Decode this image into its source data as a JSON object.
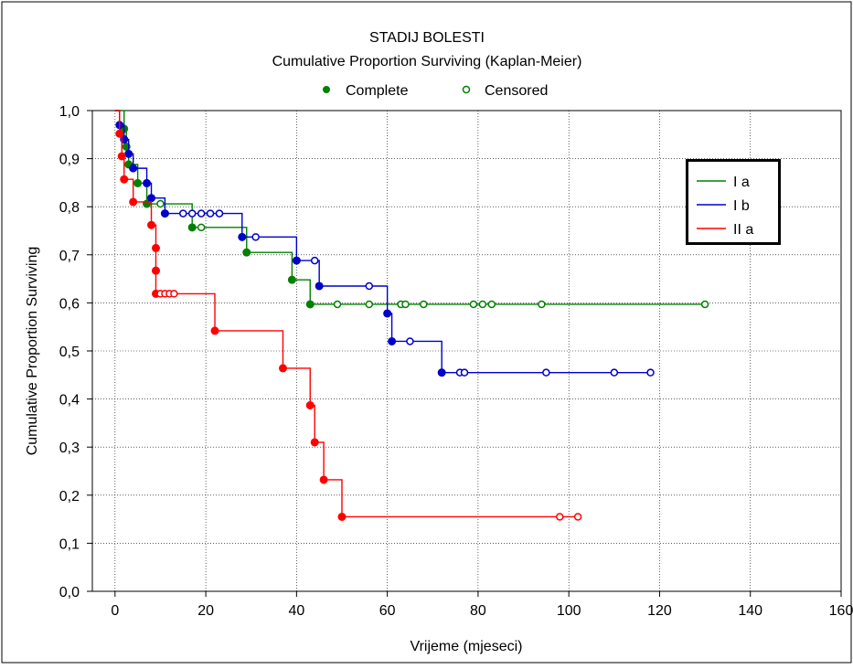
{
  "chart_data": {
    "type": "line",
    "title": "STADIJ BOLESTI",
    "subtitle": "Cumulative Proportion Surviving (Kaplan-Meier)",
    "xlabel": "Vrijeme (mjeseci)",
    "ylabel": "Cumulative Proportion Surviving",
    "xlim": [
      -5,
      160
    ],
    "ylim": [
      0,
      1
    ],
    "x_ticks": [
      "0",
      "20",
      "40",
      "60",
      "80",
      "100",
      "120",
      "140",
      "160"
    ],
    "y_ticks": [
      "0,0",
      "0,1",
      "0,2",
      "0,3",
      "0,4",
      "0,5",
      "0,6",
      "0,7",
      "0,8",
      "0,9",
      "1,0"
    ],
    "grid": true,
    "marker_legend": {
      "complete": "Complete",
      "censored": "Censored"
    },
    "legend_position": "top-right",
    "series": [
      {
        "name": "I a",
        "color": "#008000",
        "steps": [
          [
            0,
            1.0
          ],
          [
            2,
            0.962
          ],
          [
            2.5,
            0.925
          ],
          [
            3,
            0.888
          ],
          [
            5,
            0.849
          ],
          [
            7,
            0.806
          ],
          [
            17,
            0.757
          ],
          [
            29,
            0.705
          ],
          [
            39,
            0.648
          ],
          [
            43,
            0.597
          ],
          [
            130,
            0.597
          ]
        ],
        "complete": [
          [
            2,
            0.962
          ],
          [
            2.5,
            0.925
          ],
          [
            3,
            0.888
          ],
          [
            5,
            0.849
          ],
          [
            7,
            0.806
          ],
          [
            17,
            0.757
          ],
          [
            29,
            0.705
          ],
          [
            39,
            0.648
          ],
          [
            43,
            0.597
          ]
        ],
        "censored": [
          [
            10,
            0.806
          ],
          [
            19,
            0.757
          ],
          [
            49,
            0.597
          ],
          [
            56,
            0.597
          ],
          [
            63,
            0.597
          ],
          [
            64,
            0.597
          ],
          [
            68,
            0.597
          ],
          [
            79,
            0.597
          ],
          [
            81,
            0.597
          ],
          [
            83,
            0.597
          ],
          [
            94,
            0.597
          ],
          [
            130,
            0.597
          ]
        ]
      },
      {
        "name": "I b",
        "color": "#0000cc",
        "steps": [
          [
            0,
            1.0
          ],
          [
            1,
            0.97
          ],
          [
            2,
            0.94
          ],
          [
            3,
            0.91
          ],
          [
            4,
            0.88
          ],
          [
            7,
            0.849
          ],
          [
            8,
            0.818
          ],
          [
            11,
            0.786
          ],
          [
            28,
            0.737
          ],
          [
            40,
            0.688
          ],
          [
            45,
            0.635
          ],
          [
            60,
            0.578
          ],
          [
            61,
            0.52
          ],
          [
            72,
            0.455
          ],
          [
            118,
            0.455
          ]
        ],
        "complete": [
          [
            1,
            0.97
          ],
          [
            2,
            0.94
          ],
          [
            3,
            0.91
          ],
          [
            4,
            0.88
          ],
          [
            7,
            0.849
          ],
          [
            8,
            0.818
          ],
          [
            11,
            0.786
          ],
          [
            28,
            0.737
          ],
          [
            40,
            0.688
          ],
          [
            45,
            0.635
          ],
          [
            60,
            0.578
          ],
          [
            61,
            0.52
          ],
          [
            72,
            0.455
          ]
        ],
        "censored": [
          [
            15,
            0.786
          ],
          [
            17,
            0.786
          ],
          [
            19,
            0.786
          ],
          [
            21,
            0.786
          ],
          [
            23,
            0.786
          ],
          [
            31,
            0.737
          ],
          [
            44,
            0.688
          ],
          [
            56,
            0.635
          ],
          [
            65,
            0.52
          ],
          [
            76,
            0.455
          ],
          [
            77,
            0.455
          ],
          [
            95,
            0.455
          ],
          [
            110,
            0.455
          ],
          [
            118,
            0.455
          ]
        ]
      },
      {
        "name": "II a",
        "color": "#ff0000",
        "steps": [
          [
            0,
            1.0
          ],
          [
            1,
            0.952
          ],
          [
            1.5,
            0.905
          ],
          [
            2,
            0.857
          ],
          [
            4,
            0.81
          ],
          [
            8,
            0.762
          ],
          [
            9,
            0.714
          ],
          [
            9,
            0.667
          ],
          [
            9,
            0.619
          ],
          [
            22,
            0.542
          ],
          [
            37,
            0.464
          ],
          [
            43,
            0.387
          ],
          [
            44,
            0.31
          ],
          [
            46,
            0.232
          ],
          [
            50,
            0.155
          ],
          [
            102,
            0.155
          ]
        ],
        "complete": [
          [
            1,
            0.952
          ],
          [
            1.5,
            0.905
          ],
          [
            2,
            0.857
          ],
          [
            4,
            0.81
          ],
          [
            8,
            0.762
          ],
          [
            9,
            0.714
          ],
          [
            9,
            0.667
          ],
          [
            9,
            0.619
          ],
          [
            22,
            0.542
          ],
          [
            37,
            0.464
          ],
          [
            43,
            0.387
          ],
          [
            44,
            0.31
          ],
          [
            46,
            0.232
          ],
          [
            50,
            0.155
          ]
        ],
        "censored": [
          [
            10,
            0.619
          ],
          [
            11,
            0.619
          ],
          [
            12,
            0.619
          ],
          [
            13,
            0.619
          ],
          [
            98,
            0.155
          ],
          [
            102,
            0.155
          ]
        ]
      }
    ]
  }
}
